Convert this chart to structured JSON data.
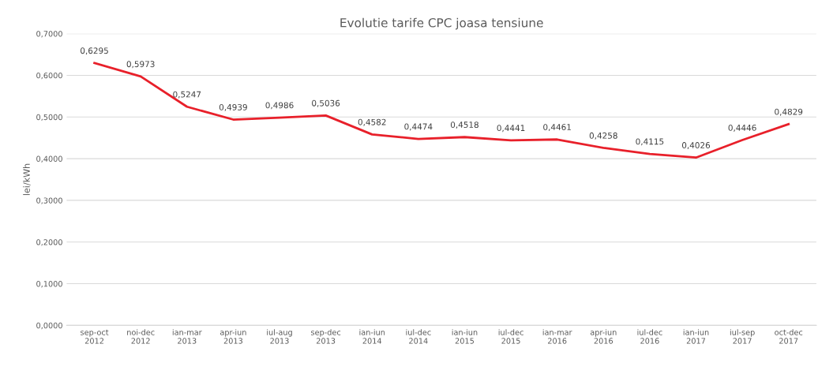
{
  "chart_data": {
    "type": "line",
    "title": "Evolutie tarife CPC joasa tensiune",
    "ylabel": "lei/kWh",
    "categories": [
      "sep-oct\n2012",
      "noi-dec\n2012",
      "ian-mar\n2013",
      "apr-iun\n2013",
      "iul-aug\n2013",
      "sep-dec\n2013",
      "ian-iun\n2014",
      "iul-dec\n2014",
      "ian-iun\n2015",
      "iul-dec\n2015",
      "ian-mar\n2016",
      "apr-iun\n2016",
      "iul-dec\n2016",
      "ian-iun\n2017",
      "iul-sep\n2017",
      "oct-dec\n2017"
    ],
    "series": [
      {
        "color": "#e8202a",
        "values": [
          0.6295,
          0.5973,
          0.5247,
          0.4939,
          0.4986,
          0.5036,
          0.4582,
          0.4474,
          0.4518,
          0.4441,
          0.4461,
          0.4258,
          0.4115,
          0.4026,
          0.4446,
          0.4829
        ],
        "value_labels": [
          "0,6295",
          "0,5973",
          "0,5247",
          "0,4939",
          "0,4986",
          "0,5036",
          "0,4582",
          "0,4474",
          "0,4518",
          "0,4441",
          "0,4461",
          "0,4258",
          "0,4115",
          "0,4026",
          "0,4446",
          "0,4829"
        ]
      }
    ],
    "ylim": [
      0,
      0.7
    ],
    "yticks": [
      {
        "value": 0,
        "label": "0,0000"
      },
      {
        "value": 0.1,
        "label": "0,1000"
      },
      {
        "value": 0.2,
        "label": "0,2000"
      },
      {
        "value": 0.3,
        "label": "0,3000"
      },
      {
        "value": 0.4,
        "label": "0,4000"
      },
      {
        "value": 0.5,
        "label": "0,5000"
      },
      {
        "value": 0.6,
        "label": "0,6000"
      },
      {
        "value": 0.7,
        "label": "0,7000"
      }
    ],
    "grid": "y",
    "marker": "none",
    "line_style": "solid"
  }
}
